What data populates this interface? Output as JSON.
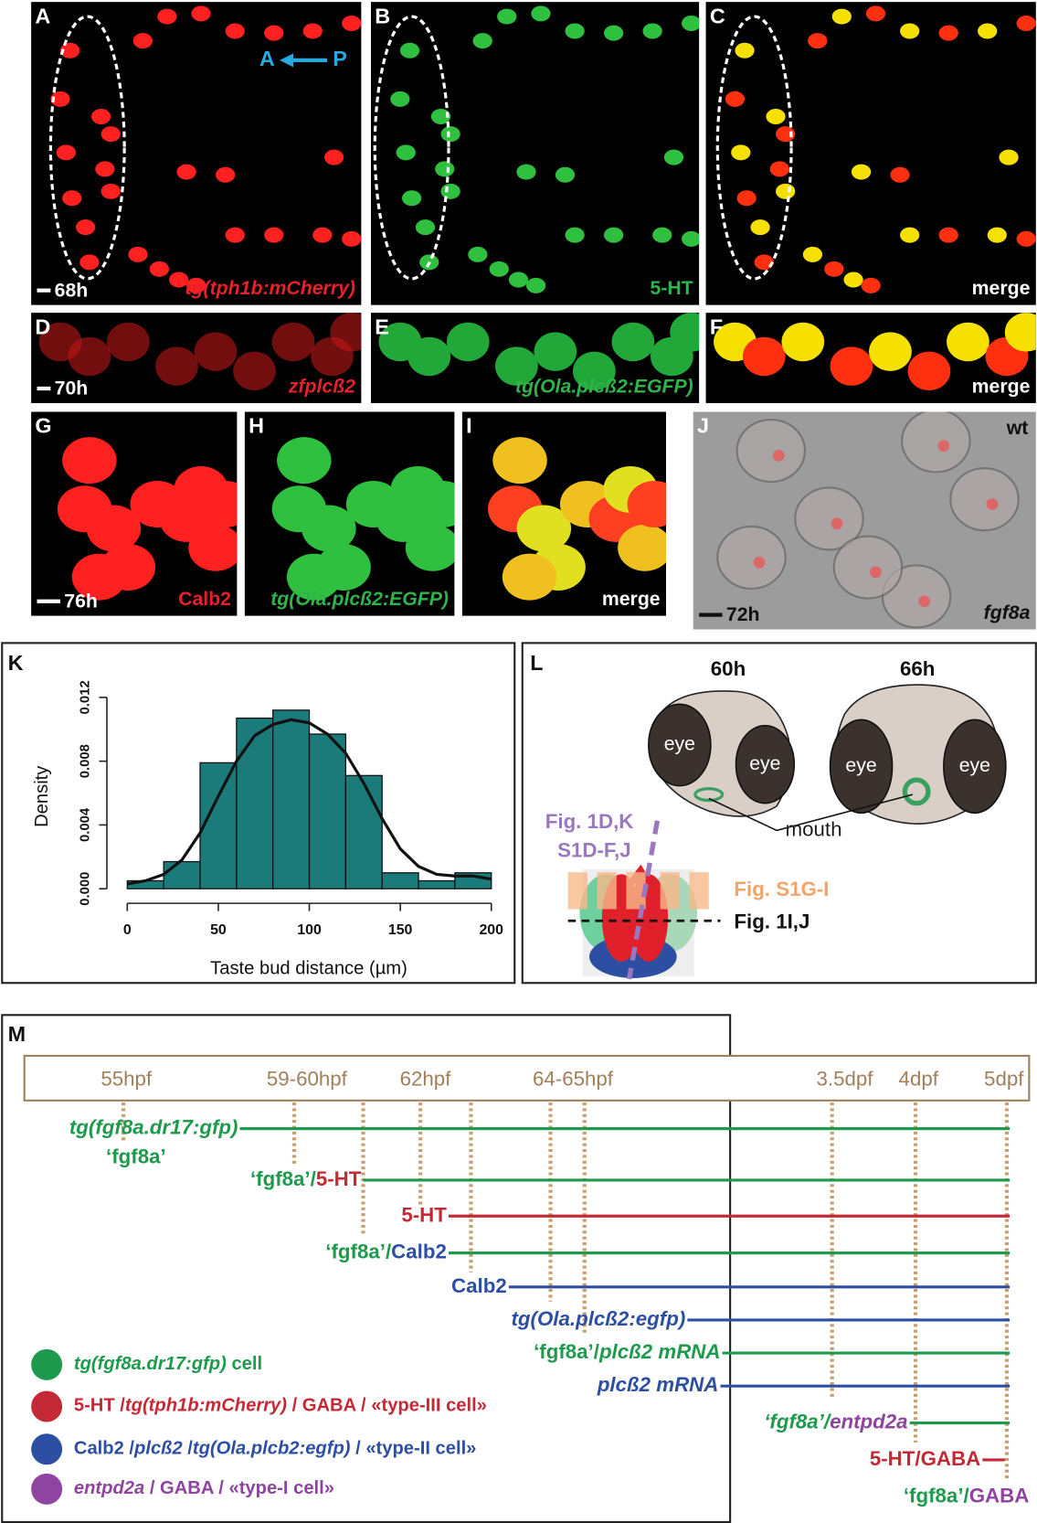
{
  "panels": [
    {
      "letter": "A",
      "scale": "68h",
      "caption": "tg(tph1b:mCherry)",
      "caption_color": "#e8202a",
      "italic": true,
      "arrow": [
        "A",
        "P"
      ]
    },
    {
      "letter": "B",
      "caption": "5-HT",
      "caption_color": "#2fb34a"
    },
    {
      "letter": "C",
      "caption": "merge",
      "caption_color": "#ffffff"
    },
    {
      "letter": "D",
      "scale": "70h",
      "caption": "zfplcß2",
      "caption_color": "#e8202a",
      "italic": true
    },
    {
      "letter": "E",
      "caption": "tg(Ola.plcß2:EGFP)",
      "caption_color": "#2fb34a",
      "italic": true
    },
    {
      "letter": "F",
      "caption": "merge",
      "caption_color": "#ffffff"
    },
    {
      "letter": "G",
      "scale": "76h",
      "caption": "Calb2",
      "caption_color": "#e8202a"
    },
    {
      "letter": "H",
      "caption": "tg(Ola.plcß2:EGFP)",
      "caption_color": "#2fb34a",
      "italic": true
    },
    {
      "letter": "I",
      "caption": "merge",
      "caption_color": "#ffffff"
    },
    {
      "letter": "J",
      "scale": "72h",
      "caption": "fgf8a",
      "caption_color": "#111111",
      "italic": true,
      "corner": "wt"
    }
  ],
  "chart_data": {
    "type": "histogram",
    "letter": "K",
    "xlabel": "Taste bud distance (µm)",
    "ylabel": "Density",
    "bins": [
      0,
      20,
      40,
      60,
      80,
      100,
      120,
      140,
      160,
      180,
      200
    ],
    "values": [
      0.0005,
      0.0017,
      0.0079,
      0.0107,
      0.0112,
      0.0097,
      0.0071,
      0.001,
      0.0005,
      0.001
    ],
    "color": "#1b7a7a",
    "density_curve": {
      "x": [
        0,
        10,
        20,
        30,
        40,
        50,
        60,
        70,
        80,
        90,
        100,
        110,
        120,
        130,
        140,
        150,
        160,
        170,
        180,
        190,
        200
      ],
      "values": [
        0.0003,
        0.0005,
        0.0009,
        0.0018,
        0.0035,
        0.0058,
        0.008,
        0.0096,
        0.0103,
        0.0106,
        0.0104,
        0.0097,
        0.0085,
        0.0066,
        0.0044,
        0.0025,
        0.0014,
        0.0009,
        0.0008,
        0.0008,
        0.0006
      ]
    },
    "xlim": [
      0,
      200
    ],
    "ylim": [
      0,
      0.012
    ],
    "xticks": [
      0,
      50,
      100,
      150,
      200
    ],
    "yticks": [
      {
        "value": 0,
        "label": "0.000"
      },
      {
        "value": 0.004,
        "label": "0.004"
      },
      {
        "value": 0.008,
        "label": "0.008"
      },
      {
        "value": 0.012,
        "label": "0.012"
      }
    ]
  },
  "diagram": {
    "letter": "L",
    "stages": [
      "60h",
      "66h"
    ],
    "eyes": [
      "eye",
      "eye",
      "eye",
      "eye"
    ],
    "mouth": "mouth",
    "sections": [
      "Fig. 1D,K",
      "S1D-F,J",
      "Fig. S1G-I",
      "Fig. 1I,J"
    ]
  },
  "timeline": {
    "letter": "M",
    "times": [
      "55hpf",
      "59-60hpf",
      "62hpf",
      "64-65hpf",
      "3.5dpf",
      "4dpf",
      "5dpf"
    ],
    "rows": [
      {
        "label": [
          {
            "text": "tg(fgf8a.dr17:gfp)",
            "color": "#1e9a4c",
            "italic": true
          }
        ],
        "sublabel": [
          {
            "text": "‘fgf8a’",
            "color": "#1e9a4c"
          }
        ],
        "line_color": "#1e9a4c"
      },
      {
        "label": [
          {
            "text": "‘fgf8a’/",
            "color": "#1e9a4c"
          },
          {
            "text": "5-HT",
            "color": "#c42a36"
          }
        ],
        "line_color": "#1e9a4c"
      },
      {
        "label": [
          {
            "text": "5-HT",
            "color": "#c42a36"
          }
        ],
        "line_color": "#c42a36"
      },
      {
        "label": [
          {
            "text": "‘fgf8a’/",
            "color": "#1e9a4c"
          },
          {
            "text": "Calb2",
            "color": "#2d4fa3"
          }
        ],
        "line_color": "#1e9a4c"
      },
      {
        "label": [
          {
            "text": "Calb2",
            "color": "#2d4fa3"
          }
        ],
        "line_color": "#2d4fa3"
      },
      {
        "label": [
          {
            "text": "tg(Ola.plcß2:egfp)",
            "color": "#2d4fa3",
            "italic": true
          }
        ],
        "line_color": "#2d4fa3"
      },
      {
        "label": [
          {
            "text": "‘fgf8a’/",
            "color": "#1e9a4c"
          },
          {
            "text": "plcß2 mRNA",
            "color": "#1e9a4c",
            "italic": true
          }
        ],
        "line_color": "#1e9a4c"
      },
      {
        "label": [
          {
            "text": "plcß2 mRNA",
            "color": "#2d4fa3",
            "italic": true
          }
        ],
        "line_color": "#2d4fa3"
      },
      {
        "label": [
          {
            "text": "‘fgf8a’/",
            "color": "#1e9a4c",
            "italic": true
          },
          {
            "text": "entpd2a",
            "color": "#8e44a0",
            "italic": true
          }
        ],
        "line_color": "#1e9a4c"
      },
      {
        "label": [
          {
            "text": "5-HT/GABA",
            "color": "#c42a36"
          }
        ],
        "line_color": "#c42a36"
      },
      {
        "label": [
          {
            "text": "‘fgf8a’/",
            "color": "#1e9a4c"
          },
          {
            "text": "GABA",
            "color": "#8e44a0"
          }
        ]
      }
    ],
    "legend": [
      {
        "color": "#1e9a4c",
        "label": [
          {
            "text": "tg(fgf8a.dr17:gfp)",
            "color": "#1e9a4c",
            "italic": true
          },
          {
            "text": " cell",
            "color": "#1e9a4c"
          }
        ]
      },
      {
        "color": "#c42a36",
        "label": [
          {
            "text": "5-HT /",
            "color": "#c42a36"
          },
          {
            "text": "tg(tph1b:mCherry)",
            "color": "#c42a36",
            "italic": true
          },
          {
            "text": " / GABA / «type-III cell»",
            "color": "#c42a36"
          }
        ]
      },
      {
        "color": "#2d4fa3",
        "label": [
          {
            "text": "Calb2 /",
            "color": "#2d4fa3"
          },
          {
            "text": "plcß2",
            "color": "#2d4fa3",
            "italic": true
          },
          {
            "text": " /",
            "color": "#2d4fa3"
          },
          {
            "text": "tg(Ola.plcb2:egfp)",
            "color": "#2d4fa3",
            "italic": true
          },
          {
            "text": " / «type-II cell»",
            "color": "#2d4fa3"
          }
        ]
      },
      {
        "color": "#8e44a0",
        "label": [
          {
            "text": "entpd2a",
            "color": "#8e44a0",
            "italic": true
          },
          {
            "text": " / GABA / «type-I cell»",
            "color": "#8e44a0"
          }
        ]
      }
    ]
  }
}
